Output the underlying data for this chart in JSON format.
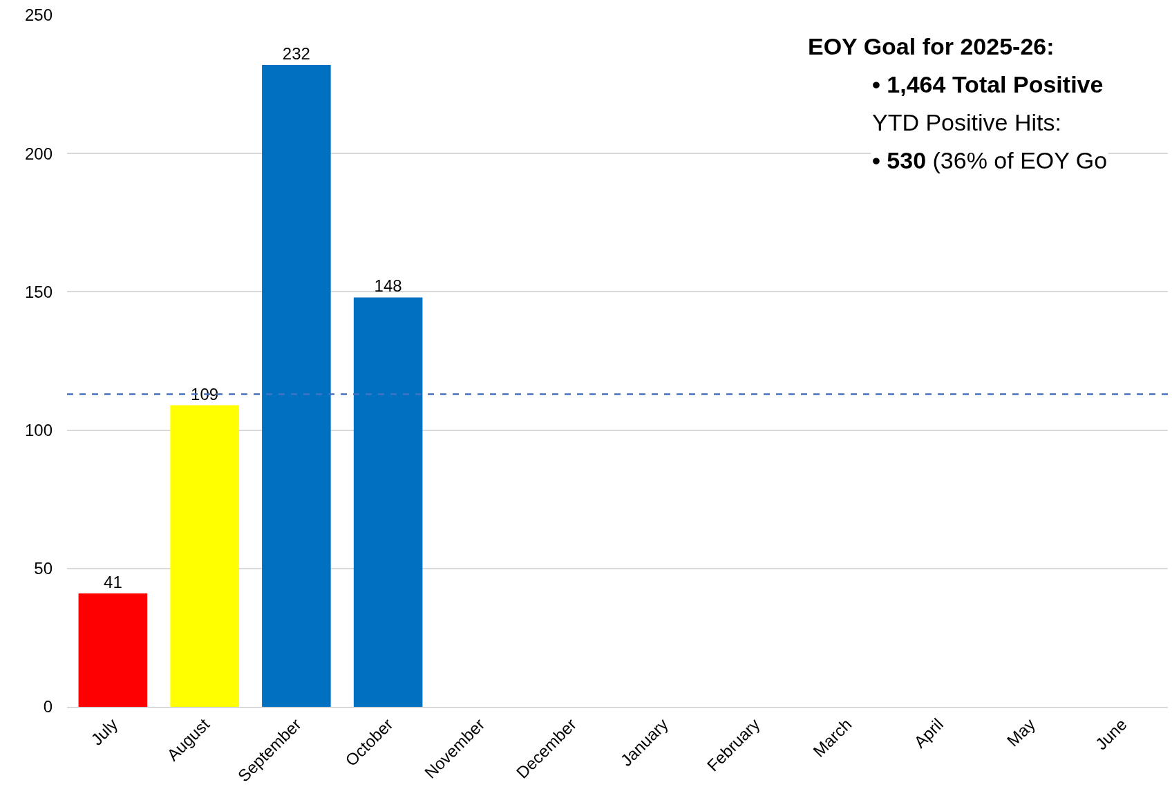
{
  "chart_data": {
    "type": "bar",
    "categories": [
      "July",
      "August",
      "September",
      "October",
      "November",
      "December",
      "January",
      "February",
      "March",
      "April",
      "May",
      "June"
    ],
    "values": [
      41,
      109,
      232,
      148,
      null,
      null,
      null,
      null,
      null,
      null,
      null,
      null
    ],
    "colors": [
      "#ff0000",
      "#ffff00",
      "#0070c0",
      "#0070c0",
      "#0070c0",
      "#0070c0",
      "#0070c0",
      "#0070c0",
      "#0070c0",
      "#0070c0",
      "#0070c0",
      "#0070c0"
    ],
    "ylim": [
      0,
      250
    ],
    "yticks": [
      0,
      50,
      100,
      150,
      200,
      250
    ],
    "grid": "y",
    "data_labels": true,
    "ref_lines": [
      {
        "axis": "y",
        "value": 113,
        "color": "#4472c4",
        "line_style": "dashed"
      }
    ],
    "annotations": [
      "EOY Goal for 2025-26:",
      "• 1,464 Total Positive",
      "YTD Positive Hits:",
      "• 530",
      "(36% of EOY Go"
    ]
  }
}
